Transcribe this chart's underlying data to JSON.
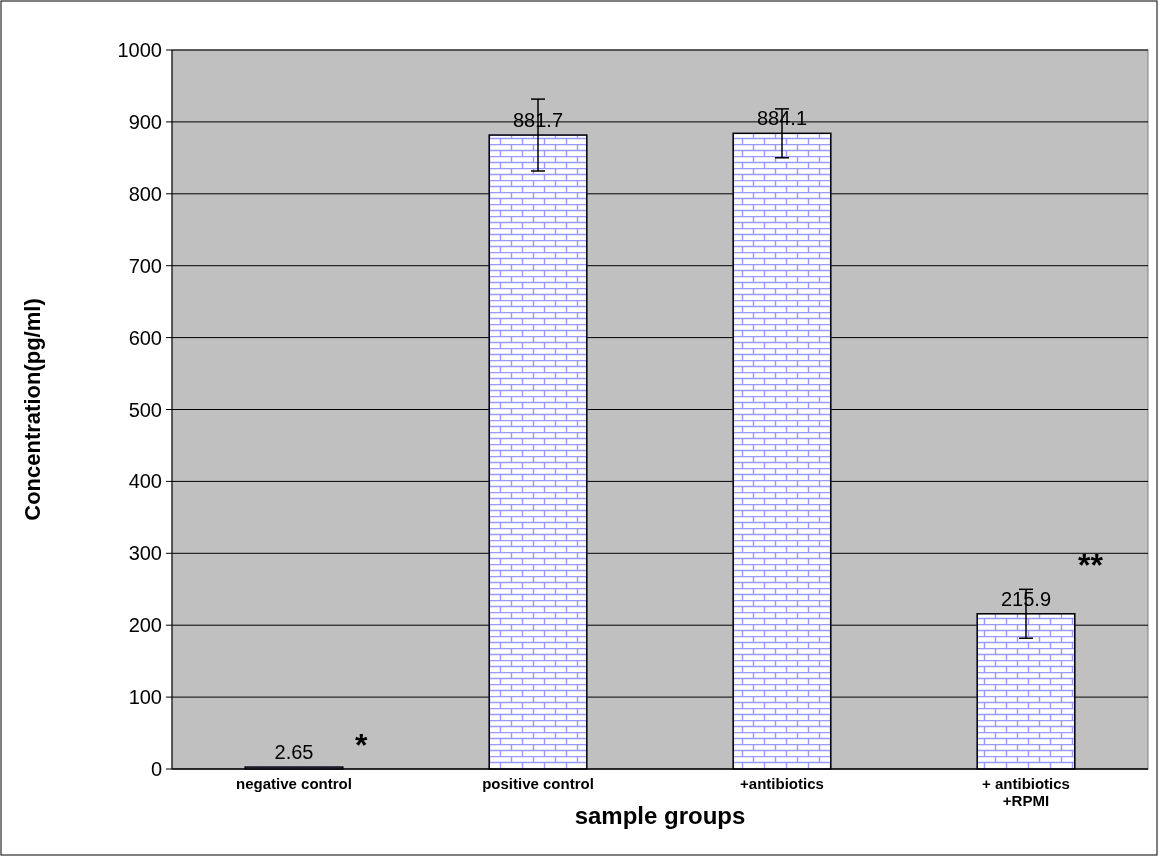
{
  "chart_data": {
    "type": "bar",
    "xlabel": "sample groups",
    "ylabel": "Concentration(pg/ml)",
    "categories": [
      "negative control",
      "positive control",
      "+antibiotics",
      "+ antibiotics\n+RPMI"
    ],
    "values": [
      2.65,
      881.7,
      884.1,
      215.9
    ],
    "errors": [
      null,
      50,
      34,
      34
    ],
    "color": "#9999ff",
    "data_labels": true,
    "ylim": [
      0,
      1000
    ],
    "yticks": [
      0,
      100,
      200,
      300,
      400,
      500,
      600,
      700,
      800,
      900,
      1000
    ],
    "grid": "y",
    "annotations": [
      "*",
      "**"
    ]
  }
}
